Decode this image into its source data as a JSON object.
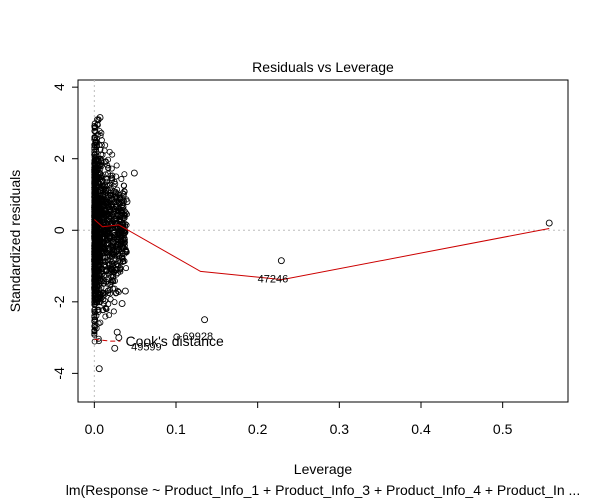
{
  "chart_data": {
    "type": "scatter",
    "title": "Residuals vs Leverage",
    "xlabel": "Leverage",
    "ylabel": "Standardized residuals",
    "subtitle": "lm(Response ~ Product_Info_1 + Product_Info_3 + Product_Info_4 + Product_In ...",
    "xlim": [
      -0.02,
      0.58
    ],
    "ylim": [
      -4.8,
      4.2
    ],
    "x_ticks": [
      0.0,
      0.1,
      0.2,
      0.3,
      0.4,
      0.5
    ],
    "x_tick_labels": [
      "0.0",
      "0.1",
      "0.2",
      "0.3",
      "0.4",
      "0.5"
    ],
    "y_ticks": [
      -4,
      -2,
      0,
      2,
      4
    ],
    "y_tick_labels": [
      "-4",
      "-2",
      "0",
      "2",
      "4"
    ],
    "reference_lines": {
      "horizontal_y": 0,
      "vertical_x": 0,
      "style": "dotted",
      "color": "#bdbdbd"
    },
    "points": [
      {
        "x": 0.557,
        "y": 0.2
      },
      {
        "x": 0.229,
        "y": -0.85
      },
      {
        "x": 0.135,
        "y": -2.5
      },
      {
        "x": 0.101,
        "y": -2.98
      },
      {
        "x": 0.049,
        "y": 1.6
      },
      {
        "x": 0.04,
        "y": 0.8
      },
      {
        "x": 0.038,
        "y": -1.7
      },
      {
        "x": 0.034,
        "y": -2.05
      },
      {
        "x": 0.03,
        "y": -3.0
      },
      {
        "x": 0.028,
        "y": -2.85
      },
      {
        "x": 0.025,
        "y": -3.3
      },
      {
        "x": 0.006,
        "y": -3.87
      },
      {
        "x": 0.007,
        "y": 3.15
      }
    ],
    "cloud": {
      "x_range": [
        0.0,
        0.04
      ],
      "y_range": [
        -3.8,
        3.1
      ],
      "n_points": 1500
    },
    "smooth_line": {
      "color": "#cc0000",
      "x": [
        0.0,
        0.01,
        0.03,
        0.13,
        0.23,
        0.557
      ],
      "y": [
        0.3,
        0.1,
        0.15,
        -1.15,
        -1.38,
        0.05
      ]
    },
    "cooks_distance": {
      "label": "Cook's distance",
      "color": "#cc0000",
      "x": [
        0.0,
        0.02,
        0.032
      ],
      "y": [
        -3.05,
        -3.1,
        -3.1
      ]
    },
    "annotations": [
      {
        "text": "47246",
        "x": 0.2,
        "y": -1.35
      },
      {
        "text": "69928",
        "x": 0.108,
        "y": -2.95
      },
      {
        "text": "49599",
        "x": 0.045,
        "y": -3.25
      }
    ]
  }
}
